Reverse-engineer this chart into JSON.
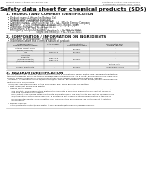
{
  "bg_color": "#f0ede8",
  "page_bg": "#ffffff",
  "header_left": "Product Name: Lithium Ion Battery Cell",
  "header_right_line1": "Substance Control: SDS-049-00010",
  "header_right_line2": "Established / Revision: Dec.7.2010",
  "title": "Safety data sheet for chemical products (SDS)",
  "section1_title": "1. PRODUCT AND COMPANY IDENTIFICATION",
  "section1_lines": [
    " • Product name: Lithium Ion Battery Cell",
    " • Product code: Cylindrical-type cell",
    "    (IHR18650U, IHR18650L, IHR18650A)",
    " • Company name:    Sanyo Electric Co., Ltd., Mobile Energy Company",
    " • Address:    2-001, Kameshima, Sumoto-City, Hyogo, Japan",
    " • Telephone number:  +81-799-20-4111",
    " • Fax number: +81-799-20-4129",
    " • Emergency telephone number (daytime): +81-799-20-3962",
    "                                     (Night and holiday): +81-799-20-3101"
  ],
  "section2_title": "2. COMPOSITION / INFORMATION ON INGREDIENTS",
  "section2_lines": [
    " • Substance or preparation: Preparation",
    " • Information about the chemical nature of product:"
  ],
  "table_headers": [
    "Chemical name /\nCommon chemical name",
    "CAS number",
    "Concentration /\nConcentration range",
    "Classification and\nhazard labeling"
  ],
  "table_rows": [
    [
      "Lithium cobalt oxide\n(LiCoO2/LiNiCOO)",
      "-",
      "30-65%",
      "-"
    ],
    [
      "Iron",
      "7439-89-6",
      "15-25%",
      "-"
    ],
    [
      "Aluminum",
      "7429-90-5",
      "2-5%",
      "-"
    ],
    [
      "Graphite\n(Natural graphite)\n(Artificial graphite)",
      "7782-42-5\n7782-44-2",
      "10-20%",
      "-"
    ],
    [
      "Copper",
      "7440-50-8",
      "5-15%",
      "Sensitization of the skin\ngroup No.2"
    ],
    [
      "Organic electrolyte",
      "-",
      "10-20%",
      "Inflammable liquid"
    ]
  ],
  "section3_title": "3. HAZARDS IDENTIFICATION",
  "section3_text": [
    "For the battery cell, chemical materials are stored in a hermetically sealed metal case, designed to withstand",
    "temperatures from minus-40-to-plus-60 degrees during normal use. As a result, during normal use, there is no",
    "physical danger of ignition or explosion and there is no danger of hazardous materials leakage.",
    "  However, if exposed to a fire, added mechanical shocks, decomposed, similar alarms without any measures,",
    "the gas insides can ever be operated. The battery cell case will be breached of fire portions, hazardous",
    "materials may be released.",
    "  Moreover, if heated strongly by the surrounding fire, some gas may be emitted.",
    "",
    " • Most important hazard and effects:",
    "    Human health effects:",
    "      Inhalation: The release of the electrolyte has an anesthetic action and stimulates a respiratory tract.",
    "      Skin contact: The release of the electrolyte stimulates a skin. The electrolyte skin contact causes a",
    "      sore and stimulation on the skin.",
    "      Eye contact: The release of the electrolyte stimulates eyes. The electrolyte eye contact causes a sore",
    "      and stimulation on the eye. Especially, a substance that causes a strong inflammation of the eye is",
    "      contained.",
    "      Environmental effects: Since a battery cell remains in the environment, do not throw out it into the",
    "      environment.",
    "",
    " • Specific hazards:",
    "    If the electrolyte contacts with water, it will generate detrimental hydrogen fluoride.",
    "    Since the used electrolyte is inflammable liquid, do not bring close to fire."
  ],
  "footer_line": true
}
